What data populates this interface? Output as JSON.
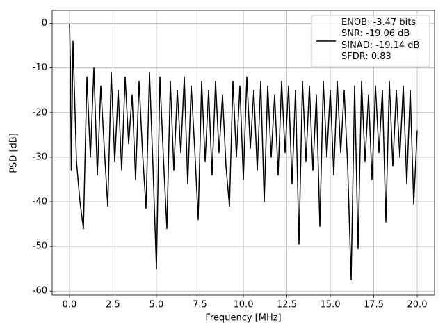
{
  "chart_data": {
    "type": "line",
    "xlabel": "Frequency [MHz]",
    "ylabel": "PSD [dB]",
    "x": [
      0,
      0.05,
      0.1,
      0.2,
      0.4,
      0.6,
      0.8,
      1.0,
      1.2,
      1.4,
      1.6,
      1.8,
      2.0,
      2.2,
      2.4,
      2.6,
      2.8,
      3.0,
      3.2,
      3.4,
      3.6,
      3.8,
      4.0,
      4.2,
      4.4,
      4.6,
      4.8,
      5.0,
      5.2,
      5.4,
      5.6,
      5.8,
      6.0,
      6.2,
      6.4,
      6.6,
      6.8,
      7.0,
      7.2,
      7.4,
      7.6,
      7.8,
      8.0,
      8.2,
      8.4,
      8.6,
      8.8,
      9.0,
      9.2,
      9.4,
      9.6,
      9.8,
      10.0,
      10.2,
      10.4,
      10.6,
      10.8,
      11.0,
      11.2,
      11.4,
      11.6,
      11.8,
      12.0,
      12.2,
      12.4,
      12.6,
      12.8,
      13.0,
      13.2,
      13.4,
      13.6,
      13.8,
      14.0,
      14.2,
      14.4,
      14.6,
      14.8,
      15.0,
      15.2,
      15.4,
      15.6,
      15.8,
      16.0,
      16.2,
      16.4,
      16.6,
      16.8,
      17.0,
      17.2,
      17.4,
      17.6,
      17.8,
      18.0,
      18.2,
      18.4,
      18.6,
      18.8,
      19.0,
      19.2,
      19.4,
      19.6,
      19.8,
      20.0
    ],
    "series": [
      {
        "name": "ENOB: -3.47 bits\nSNR: -19.06 dB\nSINAD: -19.14 dB\nSFDR: 0.83",
        "color": "#000000",
        "values": [
          0,
          -9,
          -33,
          -4,
          -31,
          -40,
          -46,
          -12,
          -30,
          -10,
          -34,
          -14,
          -28,
          -41,
          -11,
          -31,
          -15,
          -33,
          -12,
          -27,
          -16,
          -35,
          -13,
          -29,
          -41.5,
          -11,
          -32,
          -55,
          -12,
          -30,
          -46,
          -13,
          -33,
          -15,
          -29,
          -12,
          -36,
          -14,
          -28,
          -44,
          -13,
          -31,
          -15,
          -34,
          -13,
          -29,
          -16,
          -32,
          -41,
          -13,
          -30,
          -14,
          -35,
          -12,
          -28,
          -15,
          -33,
          -13,
          -40,
          -14,
          -30,
          -16,
          -34,
          -13,
          -29,
          -14,
          -36,
          -15,
          -49.5,
          -13,
          -31,
          -14,
          -33,
          -16,
          -45.5,
          -13,
          -30,
          -15,
          -34,
          -13,
          -29,
          -15,
          -32,
          -57.5,
          -14,
          -50.5,
          -13,
          -31,
          -16,
          -35,
          -14,
          -29,
          -15,
          -44.5,
          -13,
          -32,
          -15,
          -30,
          -14,
          -36,
          -15,
          -40.5,
          -24
        ]
      }
    ],
    "xlim": [
      -1,
      21
    ],
    "xticks": [
      {
        "value": 0,
        "label": "0.0"
      },
      2.5,
      {
        "value": 5,
        "label": "5.0"
      },
      7.5,
      {
        "value": 10,
        "label": "10.0"
      },
      12.5,
      {
        "value": 15,
        "label": "15.0"
      },
      17.5,
      {
        "value": 20,
        "label": "20.0"
      }
    ],
    "ylim": [
      -60.9,
      2.9
    ],
    "yticks": [
      0,
      -10,
      -20,
      -30,
      -40,
      -50,
      -60
    ],
    "grid": true,
    "legend": "upper right"
  }
}
